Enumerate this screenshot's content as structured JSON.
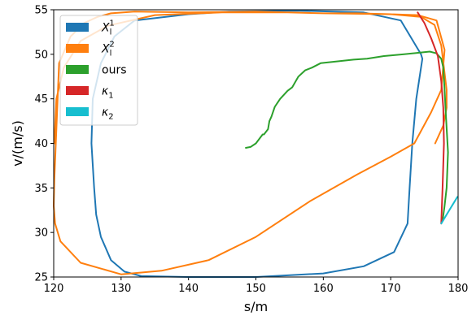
{
  "chart_data": {
    "type": "line",
    "xlabel": "s/m",
    "ylabel": "v/(m/s)",
    "xlim": [
      120,
      180
    ],
    "ylim": [
      25,
      55
    ],
    "xticks": [
      "120",
      "130",
      "140",
      "150",
      "160",
      "170",
      "180"
    ],
    "yticks": [
      "25",
      "30",
      "35",
      "40",
      "45",
      "50",
      "55"
    ],
    "grid": false,
    "legend_position": "top-left",
    "series": [
      {
        "name": "X_l^1",
        "color": "#1f77b4",
        "x": [
          174.5,
          171.5,
          166,
          156,
          146,
          140,
          132,
          129,
          127,
          125.8,
          125.6,
          126.0,
          126.3,
          127,
          128.5,
          130.5,
          133,
          140,
          150,
          160,
          166,
          170.5,
          172.5,
          172.8,
          173.2,
          173.8,
          174.4,
          174.7,
          174.5
        ],
        "y": [
          50.0,
          53.8,
          54.7,
          54.9,
          54.8,
          54.5,
          53.8,
          52.0,
          49.0,
          45.0,
          40.0,
          35.0,
          32.0,
          29.5,
          26.9,
          25.6,
          25.1,
          25.0,
          25.0,
          25.4,
          26.2,
          27.8,
          31.0,
          35.0,
          40.0,
          45.0,
          48.0,
          49.5,
          50.0
        ]
      },
      {
        "name": "X_l^2",
        "color": "#ff7f0e",
        "x": [
          120.1,
          120.4,
          121.5,
          124,
          128,
          135,
          145,
          150,
          155,
          160,
          165,
          170,
          174,
          176.8,
          178,
          177.5,
          176,
          173.5,
          170,
          165,
          158,
          150,
          143,
          136,
          130,
          124,
          121,
          120.2,
          120.0,
          120.1,
          120.8,
          122.5,
          124.5,
          126.5,
          128.5,
          132,
          140,
          150,
          160,
          170,
          174.5,
          176.5,
          177.5,
          178.3,
          178.3,
          177.8,
          176.6
        ],
        "y": [
          40.0,
          45.0,
          48.5,
          51.5,
          53.2,
          54.4,
          54.7,
          54.7,
          54.7,
          54.6,
          54.6,
          54.5,
          54.4,
          53.8,
          50.5,
          46.0,
          43.5,
          40.0,
          38.5,
          36.5,
          33.5,
          29.5,
          26.9,
          25.7,
          25.3,
          26.6,
          29.0,
          31.0,
          33.0,
          36.0,
          49.0,
          52.0,
          53.5,
          54.2,
          54.6,
          54.8,
          54.7,
          54.8,
          54.6,
          54.5,
          54.2,
          53.3,
          51.0,
          46.0,
          44.0,
          42.0,
          40.0
        ]
      },
      {
        "name": "ours",
        "color": "#2ca02c",
        "x": [
          148.5,
          149.2,
          150.0,
          150.6,
          151.0,
          151.2,
          151.8,
          152.0,
          152.3,
          152.8,
          153.6,
          154.7,
          155.4,
          156.3,
          157.3,
          158.3,
          159.6,
          162.0,
          164.5,
          166.5,
          169,
          172,
          174.5,
          175.8,
          176.8,
          177.5,
          177.8,
          178.0,
          178.2,
          178.5,
          178.3,
          178.0,
          177.7
        ],
        "y": [
          39.5,
          39.6,
          40.0,
          40.6,
          41.0,
          41.0,
          41.6,
          42.5,
          43.0,
          44.1,
          45.0,
          45.9,
          46.3,
          47.5,
          48.2,
          48.5,
          49.0,
          49.2,
          49.4,
          49.5,
          49.8,
          50.0,
          50.2,
          50.3,
          50.1,
          49.5,
          48.5,
          46.0,
          43.0,
          39.0,
          35.0,
          33.0,
          31.3
        ]
      },
      {
        "name": "κ_1",
        "color": "#d62728",
        "x": [
          174.0,
          175.0,
          176.0,
          177.0,
          177.5,
          177.8,
          177.9,
          177.7,
          177.5
        ],
        "y": [
          54.7,
          53.5,
          51.8,
          49.8,
          47.0,
          44.0,
          40.0,
          35.0,
          31.0
        ]
      },
      {
        "name": "κ_2",
        "color": "#17becf",
        "x": [
          177.5,
          178.3,
          179.1,
          179.9
        ],
        "y": [
          31.0,
          32.0,
          33.0,
          34.0
        ]
      }
    ]
  }
}
